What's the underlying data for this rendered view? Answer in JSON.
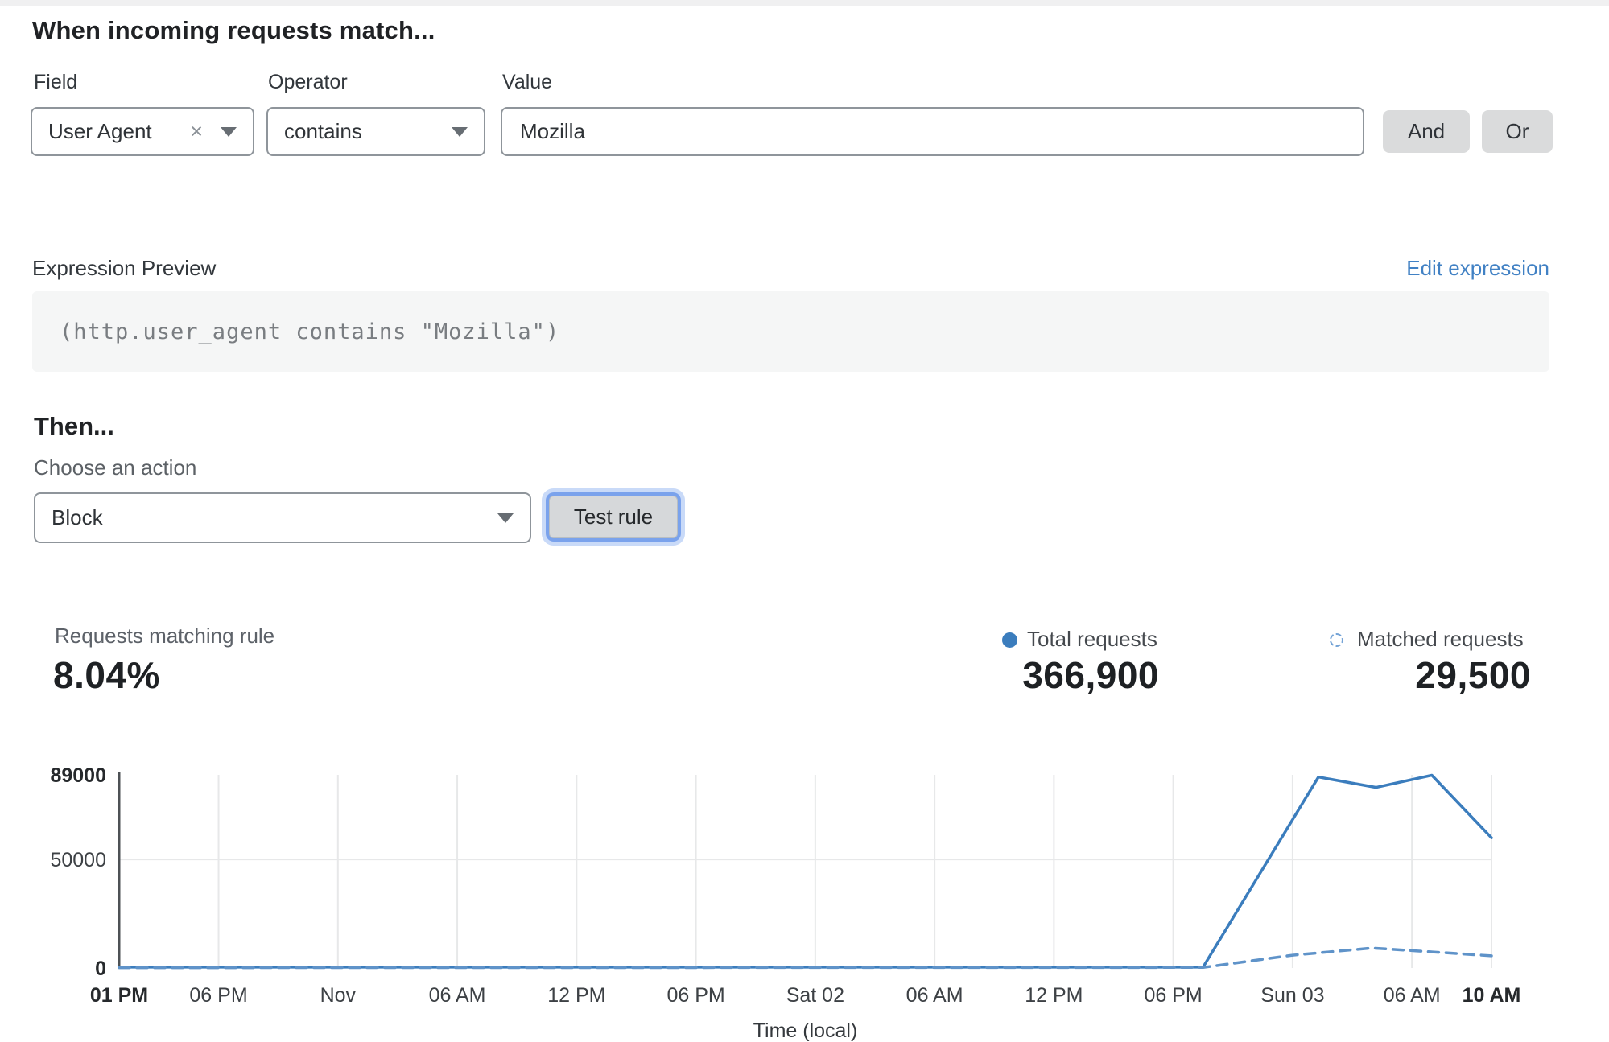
{
  "rule_builder": {
    "heading": "When incoming requests match...",
    "field": {
      "label": "Field",
      "value": "User Agent"
    },
    "operator": {
      "label": "Operator",
      "value": "contains"
    },
    "value": {
      "label": "Value",
      "value": "Mozilla"
    },
    "and_label": "And",
    "or_label": "Or"
  },
  "expression": {
    "label": "Expression Preview",
    "edit_link": "Edit expression",
    "code": "(http.user_agent contains \"Mozilla\")"
  },
  "action": {
    "heading": "Then...",
    "choose_label": "Choose an action",
    "selected": "Block",
    "test_button": "Test rule"
  },
  "stats": {
    "matching": {
      "label": "Requests matching rule",
      "value": "8.04%"
    },
    "total": {
      "label": "Total requests",
      "value": "366,900"
    },
    "matched": {
      "label": "Matched requests",
      "value": "29,500"
    }
  },
  "colors": {
    "line_solid": "#3b7dbd",
    "line_dashed": "#5f93c9",
    "link_blue": "#4181c4",
    "focus_ring": "#7aa2ec",
    "gridline": "#e7e8e9",
    "axis": "#4d5155"
  },
  "chart_data": {
    "type": "line",
    "xlabel": "Time (local)",
    "x_unit": "hours_from_start",
    "x_range": [
      0,
      69
    ],
    "ylim": [
      0,
      89000
    ],
    "grid": true,
    "legend_position": "top-right",
    "y_ticks": [
      {
        "label": "0",
        "value": 0,
        "bold": true
      },
      {
        "label": "50000",
        "value": 50000,
        "bold": false
      },
      {
        "label": "89000",
        "value": 89000,
        "bold": true
      }
    ],
    "x_ticks": [
      {
        "label": "01 PM",
        "hour": 0,
        "bold": true
      },
      {
        "label": "06 PM",
        "hour": 5,
        "bold": false
      },
      {
        "label": "Nov",
        "hour": 11,
        "bold": false
      },
      {
        "label": "06 AM",
        "hour": 17,
        "bold": false
      },
      {
        "label": "12 PM",
        "hour": 23,
        "bold": false
      },
      {
        "label": "06 PM",
        "hour": 29,
        "bold": false
      },
      {
        "label": "Sat 02",
        "hour": 35,
        "bold": false
      },
      {
        "label": "06 AM",
        "hour": 41,
        "bold": false
      },
      {
        "label": "12 PM",
        "hour": 47,
        "bold": false
      },
      {
        "label": "06 PM",
        "hour": 53,
        "bold": false
      },
      {
        "label": "Sun 03",
        "hour": 59,
        "bold": false
      },
      {
        "label": "06 AM",
        "hour": 65,
        "bold": false
      },
      {
        "label": "10 AM",
        "hour": 69,
        "bold": true
      }
    ],
    "series": [
      {
        "name": "Total requests",
        "style": "solid",
        "color": "#3b7dbd",
        "points": [
          [
            0,
            400
          ],
          [
            54.5,
            400
          ],
          [
            60.3,
            88000
          ],
          [
            63.2,
            83200
          ],
          [
            66,
            88800
          ],
          [
            69,
            60000
          ]
        ]
      },
      {
        "name": "Matched requests",
        "style": "dashed",
        "color": "#5f93c9",
        "points": [
          [
            0,
            150
          ],
          [
            54.5,
            250
          ],
          [
            59,
            5900
          ],
          [
            63,
            9200
          ],
          [
            65.2,
            7900
          ],
          [
            69,
            5600
          ]
        ]
      }
    ]
  }
}
